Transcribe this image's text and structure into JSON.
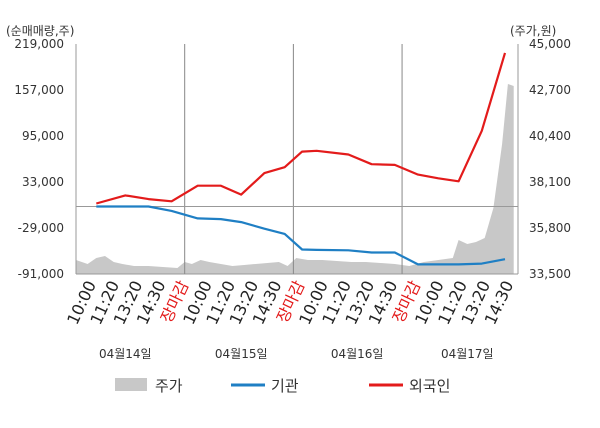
{
  "chart_data": {
    "type": "line",
    "left_axis_label": "(순매매량,주)",
    "right_axis_label": "(주가,원)",
    "left_ticks": [
      219000,
      157000,
      95000,
      33000,
      -29000,
      -91000
    ],
    "left_tick_labels": [
      "219,000",
      "157,000",
      "95,000",
      "33,000",
      "-29,000",
      "-91,000"
    ],
    "left_range": [
      -91000,
      219000
    ],
    "right_ticks": [
      45000,
      42700,
      40400,
      38100,
      35800,
      33500
    ],
    "right_tick_labels": [
      "45,000",
      "42,700",
      "40,400",
      "38,100",
      "35,800",
      "33,500"
    ],
    "right_range": [
      33500,
      45000
    ],
    "x_labels": [
      {
        "text": "10:00",
        "red": false
      },
      {
        "text": "11:20",
        "red": false
      },
      {
        "text": "13:20",
        "red": false
      },
      {
        "text": "14:30",
        "red": false
      },
      {
        "text": "장마감",
        "red": true
      },
      {
        "text": "10:00",
        "red": false
      },
      {
        "text": "11:20",
        "red": false
      },
      {
        "text": "13:20",
        "red": false
      },
      {
        "text": "14:30",
        "red": false
      },
      {
        "text": "장마감",
        "red": true
      },
      {
        "text": "10:00",
        "red": false
      },
      {
        "text": "11:20",
        "red": false
      },
      {
        "text": "13:20",
        "red": false
      },
      {
        "text": "14:30",
        "red": false
      },
      {
        "text": "장마감",
        "red": true
      },
      {
        "text": "10:00",
        "red": false
      },
      {
        "text": "11:20",
        "red": false
      },
      {
        "text": "13:20",
        "red": false
      },
      {
        "text": "14:30",
        "red": false
      }
    ],
    "dates": [
      "04월14일",
      "04월15일",
      "04월16일",
      "04월17일"
    ],
    "zero_line": 0,
    "series": [
      {
        "name": "기관",
        "color": "#1f7fc4",
        "points": [
          [
            1.4,
            0
          ],
          [
            3.4,
            0
          ],
          [
            5.0,
            0
          ],
          [
            6.6,
            -6000
          ],
          [
            8.4,
            -16000
          ],
          [
            10.0,
            -17000
          ],
          [
            11.4,
            -21000
          ],
          [
            13.0,
            -30000
          ],
          [
            14.4,
            -37000
          ],
          [
            15.6,
            -58000
          ],
          [
            16.6,
            -58500
          ],
          [
            18.8,
            -59000
          ],
          [
            20.4,
            -62000
          ],
          [
            22.0,
            -62000
          ],
          [
            23.6,
            -78000
          ],
          [
            25.0,
            -78000
          ],
          [
            26.4,
            -78000
          ],
          [
            28.0,
            -77000
          ],
          [
            29.6,
            -71000
          ]
        ]
      },
      {
        "name": "외국인",
        "color": "#e31b1b",
        "points": [
          [
            1.4,
            4000
          ],
          [
            3.4,
            15000
          ],
          [
            5.0,
            10000
          ],
          [
            6.6,
            7000
          ],
          [
            8.4,
            28000
          ],
          [
            10.0,
            28000
          ],
          [
            11.4,
            16000
          ],
          [
            13.0,
            45000
          ],
          [
            14.4,
            53000
          ],
          [
            15.6,
            74000
          ],
          [
            16.6,
            75000
          ],
          [
            18.8,
            70000
          ],
          [
            20.4,
            57000
          ],
          [
            22.0,
            56000
          ],
          [
            23.6,
            43000
          ],
          [
            25.0,
            38000
          ],
          [
            26.4,
            34000
          ],
          [
            28.0,
            102000
          ],
          [
            29.6,
            207000
          ]
        ]
      }
    ],
    "price_series": {
      "name": "주가",
      "color": "#c8c8c8",
      "points": [
        [
          0,
          34200
        ],
        [
          0.8,
          34000
        ],
        [
          1.4,
          34300
        ],
        [
          2.0,
          34400
        ],
        [
          2.6,
          34100
        ],
        [
          3.2,
          34000
        ],
        [
          4.0,
          33900
        ],
        [
          5.0,
          33900
        ],
        [
          6.0,
          33850
        ],
        [
          7.0,
          33800
        ],
        [
          7.5,
          34100
        ],
        [
          8.0,
          34000
        ],
        [
          8.6,
          34200
        ],
        [
          9.2,
          34100
        ],
        [
          10.0,
          34000
        ],
        [
          10.8,
          33900
        ],
        [
          11.6,
          33950
        ],
        [
          12.4,
          34000
        ],
        [
          13.2,
          34050
        ],
        [
          14.0,
          34100
        ],
        [
          14.6,
          33900
        ],
        [
          15.2,
          34300
        ],
        [
          16.0,
          34200
        ],
        [
          17.0,
          34200
        ],
        [
          18.0,
          34150
        ],
        [
          19.0,
          34100
        ],
        [
          20.0,
          34100
        ],
        [
          21.0,
          34050
        ],
        [
          22.0,
          34000
        ],
        [
          23.0,
          33900
        ],
        [
          24.0,
          34100
        ],
        [
          25.0,
          34200
        ],
        [
          26.0,
          34300
        ],
        [
          26.4,
          35200
        ],
        [
          27.0,
          35000
        ],
        [
          27.6,
          35100
        ],
        [
          28.2,
          35300
        ],
        [
          28.8,
          36800
        ],
        [
          29.4,
          40000
        ],
        [
          29.8,
          43000
        ],
        [
          30.2,
          42900
        ]
      ]
    },
    "legend": [
      {
        "label": "주가",
        "kind": "area",
        "color": "#c8c8c8"
      },
      {
        "label": "기관",
        "kind": "line",
        "color": "#1f7fc4"
      },
      {
        "label": "외국인",
        "kind": "line",
        "color": "#e31b1b"
      }
    ],
    "legend_position": "bottom",
    "grid": "vertical"
  }
}
